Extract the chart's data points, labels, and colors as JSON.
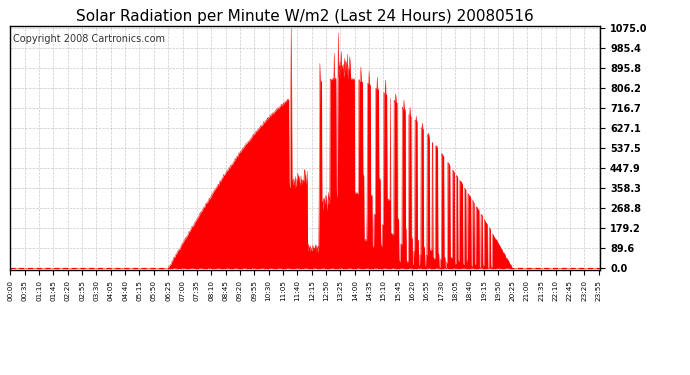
{
  "title": "Solar Radiation per Minute W/m2 (Last 24 Hours) 20080516",
  "copyright": "Copyright 2008 Cartronics.com",
  "y_ticks": [
    0.0,
    89.6,
    179.2,
    268.8,
    358.3,
    447.9,
    537.5,
    627.1,
    716.7,
    806.2,
    895.8,
    985.4,
    1075.0
  ],
  "ymax": 1075.0,
  "ymin": 0.0,
  "fill_color": "#FF0000",
  "line_color": "#FF0000",
  "dashed_line_color": "#FF0000",
  "bg_color": "#FFFFFF",
  "grid_color": "#AAAAAA",
  "title_color": "#000000",
  "title_fontsize": 11,
  "copyright_fontsize": 7,
  "num_points": 1440,
  "tick_interval_minutes": 35,
  "sunrise_minute": 385,
  "sunset_minute": 1225
}
